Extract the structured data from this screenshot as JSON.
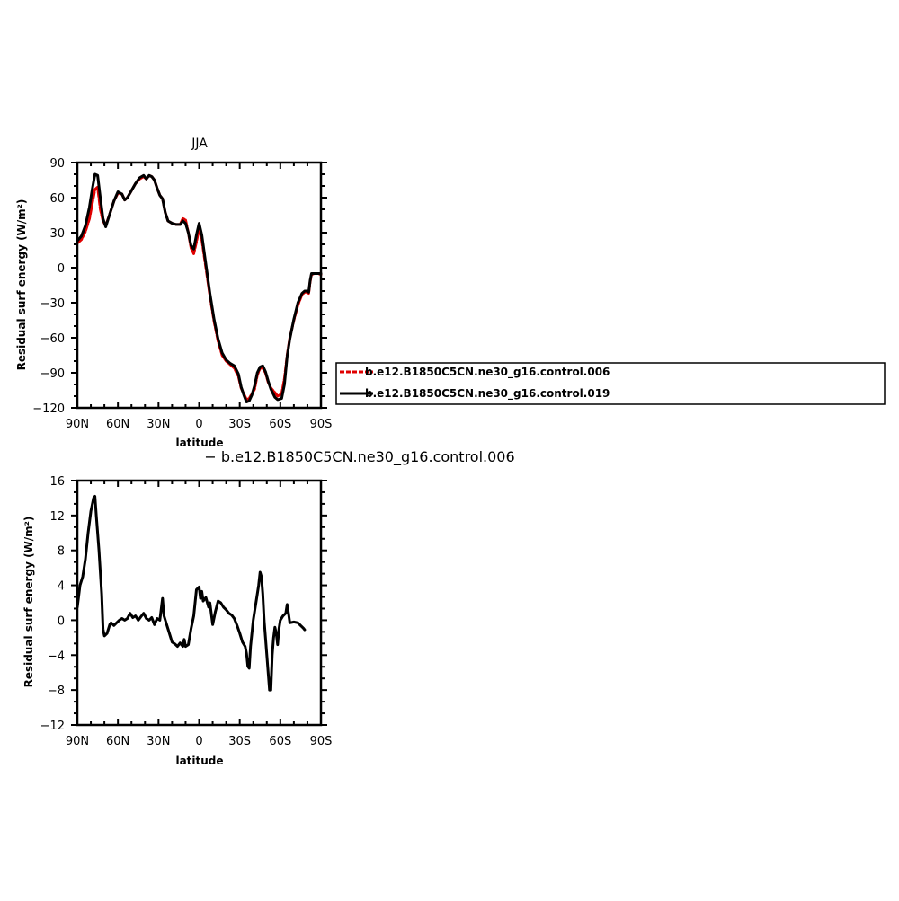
{
  "chart_data": [
    {
      "type": "line",
      "title": "JJA",
      "xlabel": "latitude",
      "ylabel": "Residual surf energy (W/m²)",
      "xlim": [
        90,
        -90
      ],
      "ylim": [
        -120,
        90
      ],
      "xticks": [
        90,
        60,
        30,
        0,
        -30,
        -60,
        -90
      ],
      "xtick_labels": [
        "90N",
        "60N",
        "30N",
        "0",
        "30S",
        "60S",
        "90S"
      ],
      "yticks": [
        -120,
        -90,
        -60,
        -30,
        0,
        30,
        60,
        90
      ],
      "ytick_labels": [
        "−120",
        "−90",
        "−60",
        "−30",
        "0",
        "30",
        "60",
        "90"
      ],
      "legend_position": "right",
      "series": [
        {
          "name": "b.e12.B1850C5CN.ne30_g16.control.006",
          "color": "#e00000",
          "style": "dashed",
          "points": [
            [
              90,
              21
            ],
            [
              87,
              24
            ],
            [
              84,
              31
            ],
            [
              81,
              42
            ],
            [
              79,
              55
            ],
            [
              77,
              67
            ],
            [
              75,
              69
            ],
            [
              73,
              50
            ],
            [
              71,
              40
            ],
            [
              69,
              36
            ],
            [
              66,
              46
            ],
            [
              63,
              57
            ],
            [
              60,
              64
            ],
            [
              57,
              63
            ],
            [
              55,
              58
            ],
            [
              53,
              60
            ],
            [
              50,
              66
            ],
            [
              47,
              72
            ],
            [
              44,
              76
            ],
            [
              41,
              78
            ],
            [
              39,
              76
            ],
            [
              37,
              79
            ],
            [
              35,
              78
            ],
            [
              33,
              75
            ],
            [
              31,
              68
            ],
            [
              29,
              62
            ],
            [
              27,
              59
            ],
            [
              25,
              47
            ],
            [
              23,
              40
            ],
            [
              20,
              38
            ],
            [
              17,
              37
            ],
            [
              14,
              37
            ],
            [
              12,
              42
            ],
            [
              10,
              41
            ],
            [
              8,
              30
            ],
            [
              6,
              17
            ],
            [
              4,
              12
            ],
            [
              2,
              22
            ],
            [
              0,
              34
            ],
            [
              -2,
              24
            ],
            [
              -5,
              0
            ],
            [
              -8,
              -24
            ],
            [
              -11,
              -46
            ],
            [
              -14,
              -63
            ],
            [
              -17,
              -75
            ],
            [
              -20,
              -80
            ],
            [
              -23,
              -83
            ],
            [
              -26,
              -86
            ],
            [
              -29,
              -93
            ],
            [
              -31,
              -103
            ],
            [
              -33,
              -108
            ],
            [
              -35,
              -113
            ],
            [
              -37,
              -112
            ],
            [
              -39,
              -108
            ],
            [
              -41,
              -104
            ],
            [
              -43,
              -92
            ],
            [
              -45,
              -86
            ],
            [
              -47,
              -86
            ],
            [
              -49,
              -90
            ],
            [
              -51,
              -98
            ],
            [
              -53,
              -103
            ],
            [
              -56,
              -107
            ],
            [
              -58,
              -110
            ],
            [
              -61,
              -108
            ],
            [
              -63,
              -95
            ],
            [
              -65,
              -75
            ],
            [
              -67,
              -60
            ],
            [
              -70,
              -45
            ],
            [
              -73,
              -32
            ],
            [
              -76,
              -23
            ],
            [
              -78,
              -21
            ],
            [
              -80,
              -21
            ],
            [
              -81,
              -22
            ],
            [
              -82,
              -12
            ],
            [
              -83,
              -6
            ],
            [
              -85,
              -5
            ],
            [
              -88,
              -5
            ],
            [
              -90,
              -6
            ]
          ]
        },
        {
          "name": "b.e12.B1850C5CN.ne30_g16.control.019",
          "color": "#000000",
          "style": "solid",
          "points": [
            [
              90,
              23
            ],
            [
              87,
              27
            ],
            [
              84,
              36
            ],
            [
              81,
              52
            ],
            [
              79,
              67
            ],
            [
              77,
              80
            ],
            [
              75,
              79
            ],
            [
              73,
              60
            ],
            [
              71,
              42
            ],
            [
              69,
              35
            ],
            [
              66,
              46
            ],
            [
              63,
              57
            ],
            [
              60,
              65
            ],
            [
              57,
              63
            ],
            [
              55,
              58
            ],
            [
              53,
              60
            ],
            [
              50,
              66
            ],
            [
              47,
              72
            ],
            [
              44,
              77
            ],
            [
              41,
              79
            ],
            [
              39,
              76
            ],
            [
              37,
              79
            ],
            [
              35,
              78
            ],
            [
              33,
              75
            ],
            [
              31,
              68
            ],
            [
              29,
              62
            ],
            [
              27,
              59
            ],
            [
              25,
              47
            ],
            [
              23,
              40
            ],
            [
              20,
              38
            ],
            [
              17,
              37
            ],
            [
              14,
              37
            ],
            [
              12,
              40
            ],
            [
              10,
              38
            ],
            [
              8,
              30
            ],
            [
              6,
              19
            ],
            [
              4,
              16
            ],
            [
              2,
              28
            ],
            [
              0,
              38
            ],
            [
              -2,
              28
            ],
            [
              -5,
              3
            ],
            [
              -8,
              -22
            ],
            [
              -11,
              -44
            ],
            [
              -14,
              -61
            ],
            [
              -17,
              -73
            ],
            [
              -20,
              -79
            ],
            [
              -23,
              -82
            ],
            [
              -26,
              -84
            ],
            [
              -29,
              -91
            ],
            [
              -31,
              -102
            ],
            [
              -33,
              -109
            ],
            [
              -35,
              -115
            ],
            [
              -37,
              -114
            ],
            [
              -39,
              -109
            ],
            [
              -41,
              -101
            ],
            [
              -43,
              -90
            ],
            [
              -45,
              -85
            ],
            [
              -47,
              -84
            ],
            [
              -49,
              -89
            ],
            [
              -51,
              -97
            ],
            [
              -53,
              -104
            ],
            [
              -56,
              -111
            ],
            [
              -58,
              -113
            ],
            [
              -61,
              -112
            ],
            [
              -63,
              -100
            ],
            [
              -65,
              -76
            ],
            [
              -67,
              -61
            ],
            [
              -70,
              -44
            ],
            [
              -73,
              -30
            ],
            [
              -76,
              -22
            ],
            [
              -78,
              -20
            ],
            [
              -80,
              -20
            ],
            [
              -81,
              -21
            ],
            [
              -82,
              -11
            ],
            [
              -83,
              -5
            ],
            [
              -85,
              -5
            ],
            [
              -88,
              -5
            ],
            [
              -90,
              -5
            ]
          ]
        }
      ]
    },
    {
      "type": "line",
      "title": "− b.e12.B1850C5CN.ne30_g16.control.006",
      "xlabel": "latitude",
      "ylabel": "Residual surf energy (W/m²)",
      "xlim": [
        90,
        -90
      ],
      "ylim": [
        -12,
        16
      ],
      "xticks": [
        90,
        60,
        30,
        0,
        -30,
        -60,
        -90
      ],
      "xtick_labels": [
        "90N",
        "60N",
        "30N",
        "0",
        "30S",
        "60S",
        "90S"
      ],
      "yticks": [
        -12,
        -8,
        -4,
        0,
        4,
        8,
        12,
        16
      ],
      "ytick_labels": [
        "−12",
        "−8",
        "−4",
        "0",
        "4",
        "8",
        "12",
        "16"
      ],
      "series": [
        {
          "color": "#000000",
          "style": "solid",
          "points": [
            [
              90,
              1.5
            ],
            [
              88,
              4
            ],
            [
              86,
              5
            ],
            [
              84,
              7
            ],
            [
              82,
              10
            ],
            [
              80,
              12.5
            ],
            [
              78,
              14
            ],
            [
              77,
              14.2
            ],
            [
              76,
              12
            ],
            [
              74,
              8
            ],
            [
              72,
              3
            ],
            [
              71,
              -1
            ],
            [
              70,
              -1.8
            ],
            [
              68,
              -1.5
            ],
            [
              66,
              -0.5
            ],
            [
              65,
              -0.3
            ],
            [
              63,
              -0.6
            ],
            [
              61,
              -0.3
            ],
            [
              59,
              0
            ],
            [
              57,
              0.2
            ],
            [
              55,
              0
            ],
            [
              53,
              0.2
            ],
            [
              51,
              0.8
            ],
            [
              49,
              0.3
            ],
            [
              47,
              0.5
            ],
            [
              45,
              0
            ],
            [
              43,
              0.4
            ],
            [
              41,
              0.8
            ],
            [
              39,
              0.2
            ],
            [
              37,
              0
            ],
            [
              35,
              0.3
            ],
            [
              33,
              -0.5
            ],
            [
              31,
              0.2
            ],
            [
              29,
              0
            ],
            [
              27,
              2.5
            ],
            [
              26,
              0.5
            ],
            [
              24,
              -0.5
            ],
            [
              22,
              -1.5
            ],
            [
              20,
              -2.5
            ],
            [
              18,
              -2.7
            ],
            [
              16,
              -3
            ],
            [
              14,
              -2.6
            ],
            [
              12,
              -3
            ],
            [
              11,
              -2.2
            ],
            [
              10,
              -3
            ],
            [
              8,
              -2.8
            ],
            [
              6,
              -1
            ],
            [
              4,
              0.5
            ],
            [
              2,
              3.5
            ],
            [
              0,
              3.8
            ],
            [
              -1,
              2.5
            ],
            [
              -2,
              3.3
            ],
            [
              -3,
              2.2
            ],
            [
              -5,
              2.6
            ],
            [
              -7,
              1.5
            ],
            [
              -8,
              2
            ],
            [
              -10,
              -0.5
            ],
            [
              -12,
              1
            ],
            [
              -14,
              2.2
            ],
            [
              -16,
              2
            ],
            [
              -18,
              1.5
            ],
            [
              -20,
              1.2
            ],
            [
              -22,
              0.8
            ],
            [
              -24,
              0.6
            ],
            [
              -26,
              0.2
            ],
            [
              -28,
              -0.6
            ],
            [
              -30,
              -1.5
            ],
            [
              -32,
              -2.5
            ],
            [
              -34,
              -3
            ],
            [
              -35,
              -3.8
            ],
            [
              -36,
              -5.3
            ],
            [
              -37,
              -5.5
            ],
            [
              -38,
              -3
            ],
            [
              -40,
              0
            ],
            [
              -42,
              2
            ],
            [
              -44,
              4
            ],
            [
              -45,
              5.5
            ],
            [
              -46,
              5
            ],
            [
              -47,
              3
            ],
            [
              -48,
              0
            ],
            [
              -50,
              -4
            ],
            [
              -51,
              -6
            ],
            [
              -52,
              -8
            ],
            [
              -53,
              -8
            ],
            [
              -54,
              -4
            ],
            [
              -55,
              -2
            ],
            [
              -56,
              -0.8
            ],
            [
              -57,
              -1.5
            ],
            [
              -58,
              -2.8
            ],
            [
              -59,
              -1
            ],
            [
              -60,
              0
            ],
            [
              -62,
              0.5
            ],
            [
              -64,
              0.8
            ],
            [
              -65,
              1.8
            ],
            [
              -66,
              0.8
            ],
            [
              -67,
              -0.3
            ],
            [
              -70,
              -0.2
            ],
            [
              -73,
              -0.3
            ],
            [
              -75,
              -0.6
            ],
            [
              -77,
              -0.9
            ],
            [
              -78,
              -1.1
            ]
          ]
        }
      ]
    }
  ]
}
